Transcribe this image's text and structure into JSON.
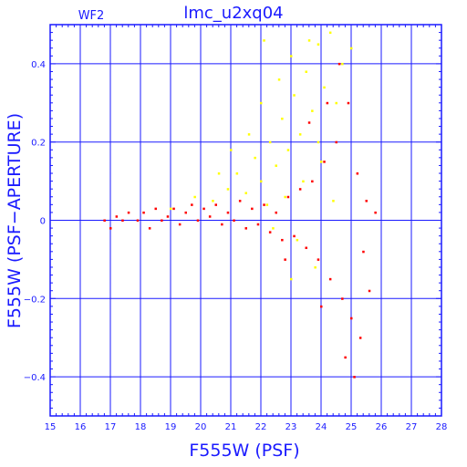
{
  "chart_data": {
    "type": "scatter",
    "title": "lmc_u2xq04",
    "subtitle": "WF2",
    "xlabel": "F555W (PSF)",
    "ylabel": "F555W (PSF−APERTURE)",
    "xlim": [
      15,
      28
    ],
    "ylim": [
      -0.5,
      0.5
    ],
    "grid": true,
    "x_ticks": [
      15,
      16,
      17,
      18,
      19,
      20,
      21,
      22,
      23,
      24,
      25,
      26,
      27,
      28
    ],
    "y_ticks": [
      -0.4,
      -0.2,
      0,
      0.2,
      0.4
    ],
    "colors": {
      "axes": "#1a1aff",
      "grid": "#1a1aff"
    },
    "series": [
      {
        "color": "#ff0000",
        "points": [
          [
            16.8,
            0.0
          ],
          [
            17.0,
            -0.02
          ],
          [
            17.2,
            0.01
          ],
          [
            17.4,
            0.0
          ],
          [
            17.6,
            0.02
          ],
          [
            17.9,
            0.0
          ],
          [
            18.1,
            0.02
          ],
          [
            18.3,
            -0.02
          ],
          [
            18.5,
            0.03
          ],
          [
            18.7,
            0.0
          ],
          [
            18.9,
            0.01
          ],
          [
            19.1,
            0.03
          ],
          [
            19.3,
            -0.01
          ],
          [
            19.5,
            0.02
          ],
          [
            19.7,
            0.04
          ],
          [
            19.9,
            0.0
          ],
          [
            20.1,
            0.03
          ],
          [
            20.3,
            0.01
          ],
          [
            20.5,
            0.04
          ],
          [
            20.7,
            -0.01
          ],
          [
            20.9,
            0.02
          ],
          [
            21.1,
            0.0
          ],
          [
            21.3,
            0.05
          ],
          [
            21.5,
            -0.02
          ],
          [
            21.7,
            0.03
          ],
          [
            21.9,
            -0.01
          ],
          [
            22.1,
            0.04
          ],
          [
            22.3,
            -0.03
          ],
          [
            22.5,
            0.02
          ],
          [
            22.7,
            -0.05
          ],
          [
            22.9,
            0.06
          ],
          [
            23.1,
            -0.04
          ],
          [
            23.3,
            0.08
          ],
          [
            23.5,
            -0.07
          ],
          [
            23.7,
            0.1
          ],
          [
            23.9,
            -0.1
          ],
          [
            24.1,
            0.15
          ],
          [
            24.3,
            -0.15
          ],
          [
            24.5,
            0.2
          ],
          [
            24.7,
            -0.2
          ],
          [
            24.9,
            0.3
          ],
          [
            25.0,
            -0.25
          ],
          [
            25.2,
            0.12
          ],
          [
            25.3,
            -0.3
          ],
          [
            25.5,
            0.05
          ],
          [
            25.6,
            -0.18
          ],
          [
            25.8,
            0.02
          ],
          [
            24.8,
            -0.35
          ],
          [
            25.1,
            -0.4
          ],
          [
            23.6,
            0.25
          ],
          [
            24.2,
            0.3
          ],
          [
            24.6,
            0.4
          ],
          [
            22.8,
            -0.1
          ],
          [
            24.0,
            -0.22
          ],
          [
            25.4,
            -0.08
          ]
        ]
      },
      {
        "color": "#ffff00",
        "points": [
          [
            19.0,
            0.03
          ],
          [
            19.8,
            0.06
          ],
          [
            20.4,
            0.05
          ],
          [
            20.9,
            0.08
          ],
          [
            21.2,
            0.12
          ],
          [
            21.5,
            0.07
          ],
          [
            21.8,
            0.16
          ],
          [
            22.0,
            0.1
          ],
          [
            22.3,
            0.2
          ],
          [
            22.5,
            0.14
          ],
          [
            22.7,
            0.26
          ],
          [
            22.9,
            0.18
          ],
          [
            23.1,
            0.32
          ],
          [
            23.3,
            0.22
          ],
          [
            23.5,
            0.38
          ],
          [
            23.7,
            0.28
          ],
          [
            23.9,
            0.45
          ],
          [
            24.1,
            0.34
          ],
          [
            24.3,
            0.48
          ],
          [
            24.5,
            0.3
          ],
          [
            22.2,
            0.04
          ],
          [
            22.8,
            0.06
          ],
          [
            23.4,
            0.1
          ],
          [
            24.0,
            0.15
          ],
          [
            21.6,
            0.22
          ],
          [
            22.0,
            0.3
          ],
          [
            22.6,
            0.36
          ],
          [
            23.0,
            0.42
          ],
          [
            23.6,
            0.46
          ],
          [
            22.4,
            -0.02
          ],
          [
            23.2,
            -0.05
          ],
          [
            23.8,
            -0.12
          ],
          [
            24.4,
            0.05
          ],
          [
            25.0,
            0.44
          ],
          [
            21.0,
            0.18
          ],
          [
            20.6,
            0.12
          ],
          [
            23.9,
            0.2
          ],
          [
            22.1,
            0.46
          ],
          [
            24.7,
            0.4
          ],
          [
            23.0,
            -0.15
          ]
        ]
      }
    ]
  }
}
